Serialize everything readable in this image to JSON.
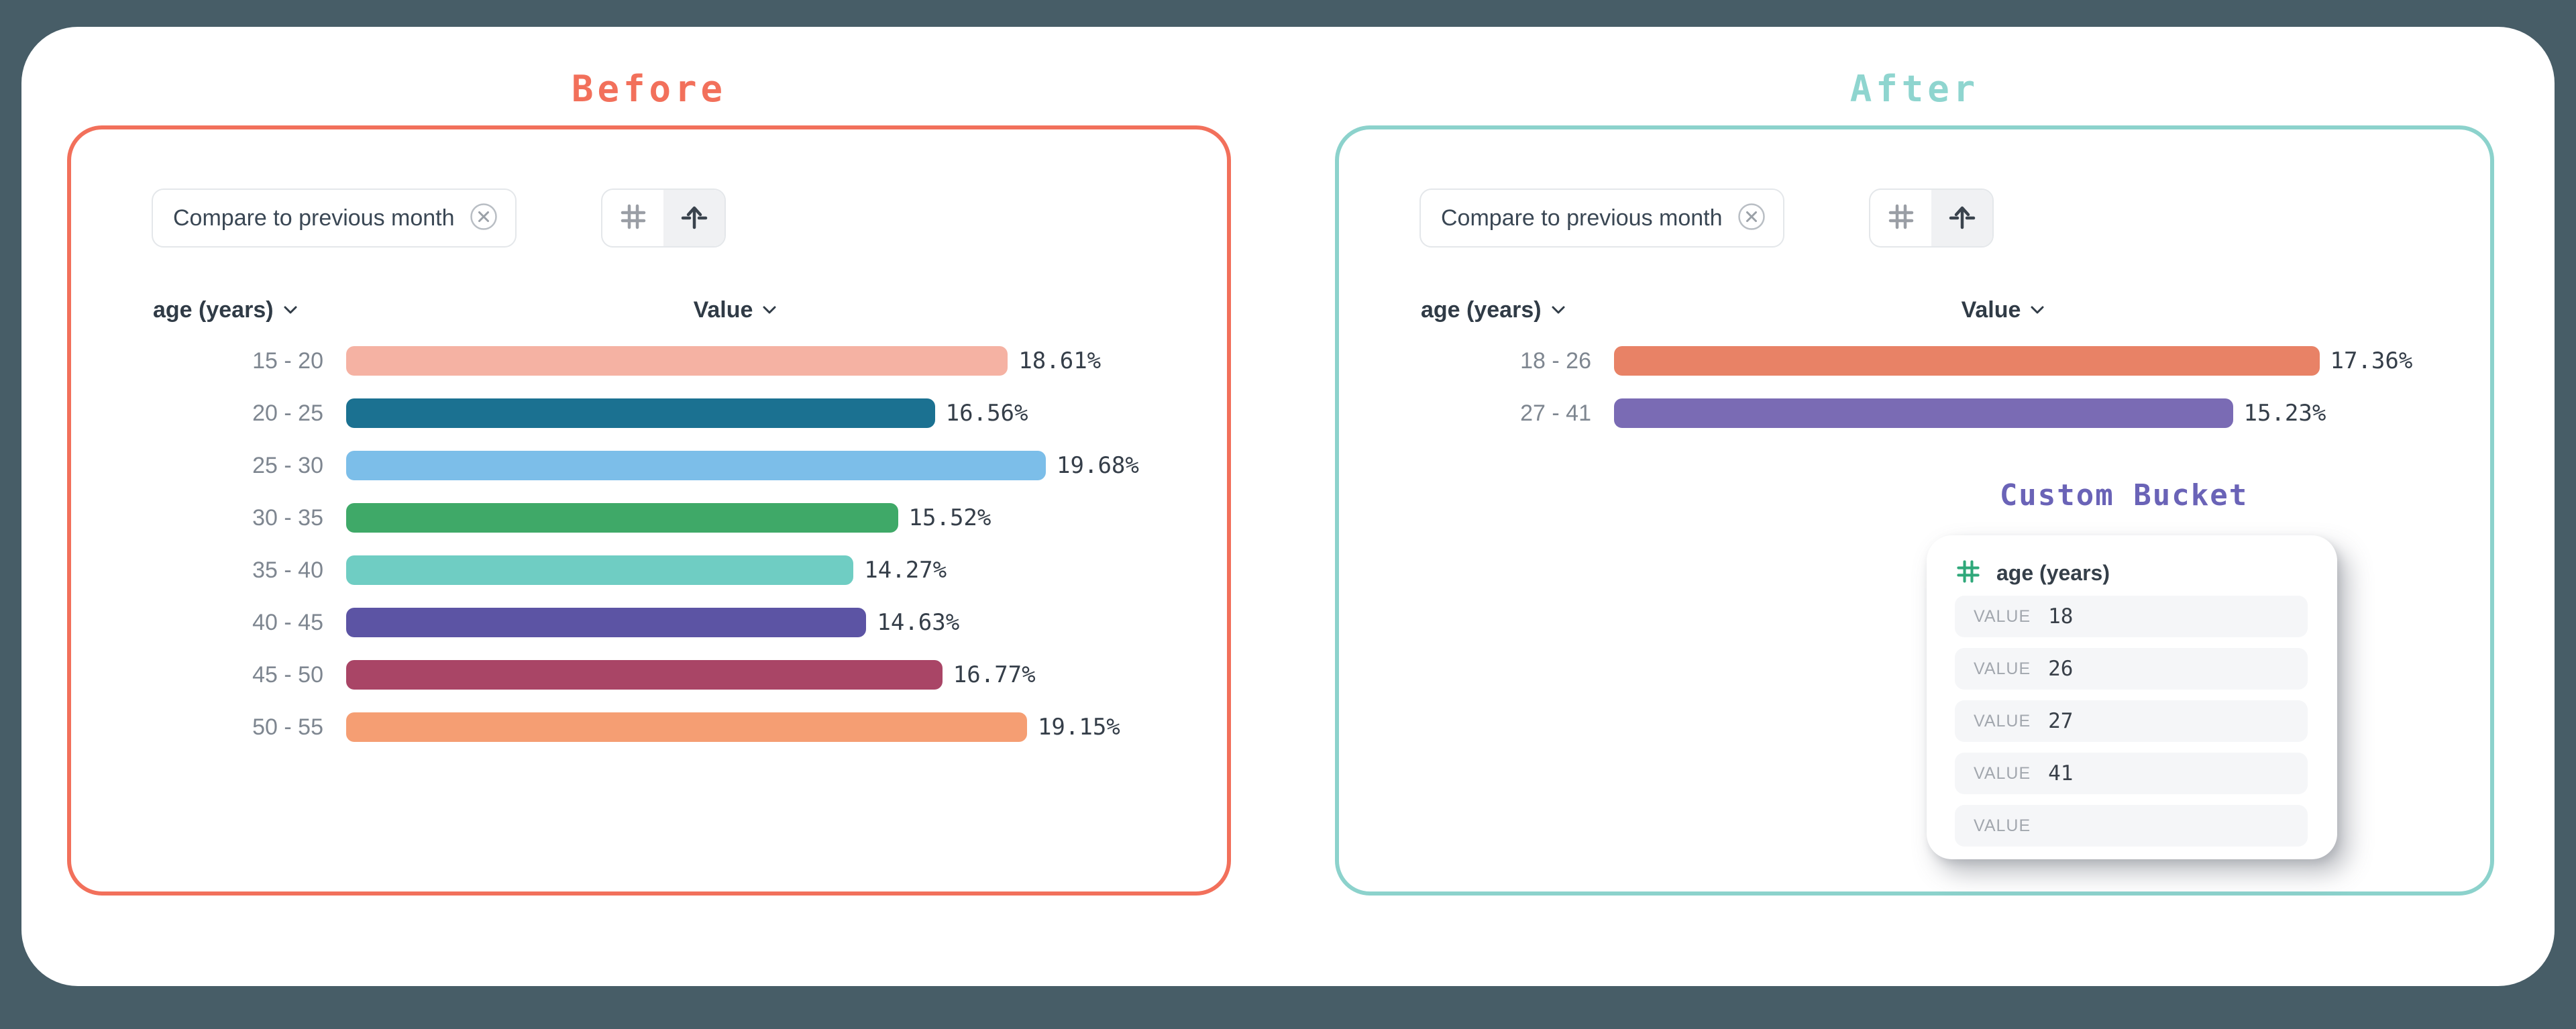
{
  "theme": {
    "page_bg": "#475D67",
    "card_bg": "#FFFFFF",
    "before_accent": "#F2705B",
    "after_accent": "#8CD2CC",
    "bucket_accent": "#6A63B7",
    "hash_green": "#2FA87A"
  },
  "panels": [
    {
      "title": "Before",
      "chip_label": "Compare to previous month",
      "dimension_header": "age (years)",
      "measure_header": "Value"
    },
    {
      "title": "After",
      "chip_label": "Compare to previous month",
      "dimension_header": "age (years)",
      "measure_header": "Value"
    }
  ],
  "chart_data": [
    {
      "type": "bar",
      "orientation": "horizontal",
      "title": "Before",
      "xlabel": "Value",
      "ylabel": "age (years)",
      "categories": [
        "15 - 20",
        "20 - 25",
        "25 - 30",
        "30 - 35",
        "35 - 40",
        "40 - 45",
        "45 - 50",
        "50 - 55"
      ],
      "values": [
        18.61,
        16.56,
        19.68,
        15.52,
        14.27,
        14.63,
        16.77,
        19.15
      ],
      "labels": [
        "18.61%",
        "16.56%",
        "19.68%",
        "15.52%",
        "14.27%",
        "14.63%",
        "16.77%",
        "19.15%"
      ],
      "colors": [
        "#F5B2A3",
        "#1B7191",
        "#7CBEE9",
        "#3FA968",
        "#6FCDC3",
        "#5C54A4",
        "#A94566",
        "#F59E73"
      ],
      "xmax": 20,
      "grid": false,
      "legend": false
    },
    {
      "type": "bar",
      "orientation": "horizontal",
      "title": "After",
      "xlabel": "Value",
      "ylabel": "age (years)",
      "categories": [
        "18 - 26",
        "27 - 41"
      ],
      "values": [
        17.36,
        15.23
      ],
      "labels": [
        "17.36%",
        "15.23%"
      ],
      "colors": [
        "#E88266",
        "#7A6BB4"
      ],
      "xmax": 17.5,
      "grid": false,
      "legend": false
    }
  ],
  "custom_bucket": {
    "title": "Custom Bucket",
    "field": "age (years)",
    "rows": [
      {
        "label": "VALUE",
        "value": "18"
      },
      {
        "label": "VALUE",
        "value": "26"
      },
      {
        "label": "VALUE",
        "value": "27"
      },
      {
        "label": "VALUE",
        "value": "41"
      },
      {
        "label": "VALUE",
        "value": ""
      }
    ]
  }
}
